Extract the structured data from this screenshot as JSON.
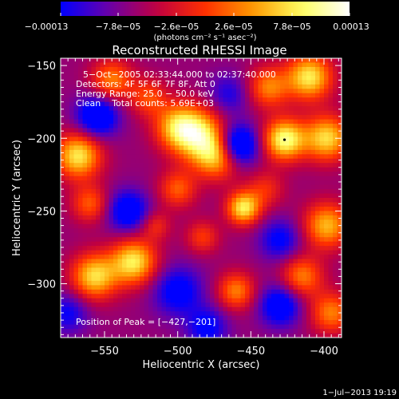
{
  "chart_data": {
    "type": "heatmap",
    "title": "Reconstructed RHESSI Image",
    "xlabel": "Heliocentric X (arcsec)",
    "ylabel": "Heliocentric Y (arcsec)",
    "xlim": [
      -580,
      -388
    ],
    "ylim": [
      -337,
      -145
    ],
    "x_ticks": [
      -550,
      -500,
      -450,
      -400
    ],
    "x_tick_labels": [
      "−550",
      "−500",
      "−450",
      "−400"
    ],
    "y_ticks": [
      -150,
      -200,
      -250,
      -300
    ],
    "y_tick_labels": [
      "−150",
      "−200",
      "−250",
      "−300"
    ],
    "colorbar": {
      "min": -0.00013,
      "max": 0.00013,
      "tick_labels": [
        "−0.00013",
        "−7.8e−05",
        "−2.6e−05",
        "2.6e−05",
        "7.8e−05",
        "0.00013"
      ],
      "units": "(photons cm⁻² s⁻¹ asec⁻²)",
      "colors": [
        "#0000ff",
        "#6a00a8",
        "#c00040",
        "#ff3000",
        "#ff9a00",
        "#ffff60",
        "#ffffff"
      ]
    },
    "annotations": {
      "time": "5−Oct−2005 02:33:44.000 to 02:37:40.000",
      "detectors": "Detectors: 4F 5F 6F 7F 8F, Att 0",
      "energy": "Energy Range: 25.0 − 50.0 keV",
      "clean": "Clean    Total counts: 5.69E+03",
      "peak": "Position of Peak = [−427,−201]"
    },
    "peak": [
      -427,
      -201
    ],
    "blobs": [
      {
        "x": -427,
        "y": -201,
        "amp": 1.0,
        "s": 10
      },
      {
        "x": -485,
        "y": -198,
        "amp": 0.8,
        "s": 13
      },
      {
        "x": -500,
        "y": -192,
        "amp": 0.7,
        "s": 11
      },
      {
        "x": -472,
        "y": -212,
        "amp": 0.8,
        "s": 11
      },
      {
        "x": -568,
        "y": -212,
        "amp": 0.9,
        "s": 11
      },
      {
        "x": -410,
        "y": -158,
        "amp": 0.9,
        "s": 11
      },
      {
        "x": -438,
        "y": -165,
        "amp": 0.6,
        "s": 10
      },
      {
        "x": -398,
        "y": -200,
        "amp": 0.85,
        "s": 11
      },
      {
        "x": -398,
        "y": -260,
        "amp": 0.75,
        "s": 11
      },
      {
        "x": -415,
        "y": -295,
        "amp": 0.6,
        "s": 10
      },
      {
        "x": -455,
        "y": -248,
        "amp": 0.9,
        "s": 8
      },
      {
        "x": -530,
        "y": -285,
        "amp": 0.9,
        "s": 11
      },
      {
        "x": -557,
        "y": -295,
        "amp": 0.85,
        "s": 11
      },
      {
        "x": -560,
        "y": -245,
        "amp": 0.5,
        "s": 9
      },
      {
        "x": -515,
        "y": -260,
        "amp": 0.35,
        "s": 7
      },
      {
        "x": -483,
        "y": -268,
        "amp": 0.4,
        "s": 8
      },
      {
        "x": -460,
        "y": -305,
        "amp": 0.6,
        "s": 9
      },
      {
        "x": -545,
        "y": -160,
        "amp": 0.6,
        "s": 10
      },
      {
        "x": -520,
        "y": -172,
        "amp": 0.45,
        "s": 9
      },
      {
        "x": -500,
        "y": -235,
        "amp": 0.5,
        "s": 9
      },
      {
        "x": -440,
        "y": -235,
        "amp": 0.35,
        "s": 9
      },
      {
        "x": -395,
        "y": -320,
        "amp": 0.6,
        "s": 10
      },
      {
        "x": -460,
        "y": -205,
        "amp": -0.95,
        "s": 10
      },
      {
        "x": -534,
        "y": -250,
        "amp": -0.6,
        "s": 10
      },
      {
        "x": -555,
        "y": -185,
        "amp": -0.7,
        "s": 10
      },
      {
        "x": -500,
        "y": -305,
        "amp": -0.5,
        "s": 12
      },
      {
        "x": -430,
        "y": -315,
        "amp": -0.6,
        "s": 10
      },
      {
        "x": -430,
        "y": -270,
        "amp": -0.45,
        "s": 10
      },
      {
        "x": -575,
        "y": -320,
        "amp": -0.4,
        "s": 10
      },
      {
        "x": -465,
        "y": -170,
        "amp": -0.35,
        "s": 10
      },
      {
        "x": -480,
        "y": -330,
        "amp": -0.45,
        "s": 10
      }
    ]
  },
  "footer": {
    "date": "1−Jul−2013 19:19"
  }
}
